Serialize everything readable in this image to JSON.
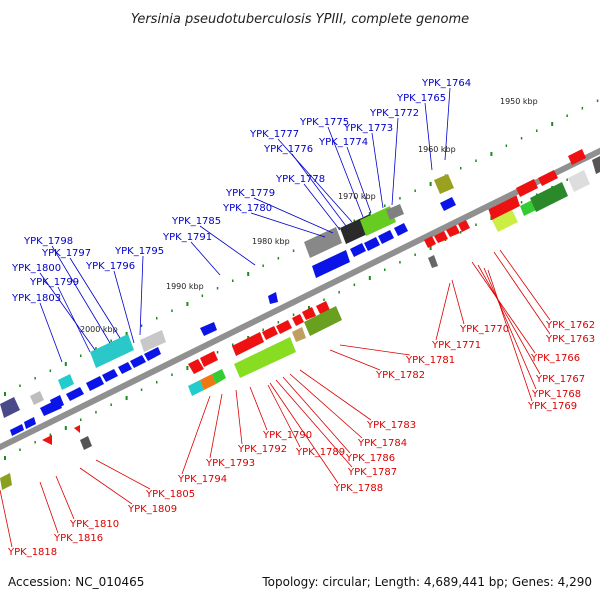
{
  "title": "Yersinia pseudotuberculosis YPIII, complete genome",
  "footer": {
    "accession": "Accession: NC_010465",
    "topology": "Topology: circular; Length: 4,689,441 bp; Genes: 4,290"
  },
  "colors": {
    "top_label": "#0000cc",
    "bottom_label": "#dd0000",
    "backbone": "#888888",
    "gene_blue": "#0a14e6",
    "gene_red": "#ee1111",
    "tick_green": "#1f8a1f"
  },
  "scale_ticks": [
    "1950 kbp",
    "1960 kbp",
    "1970 kbp",
    "1980 kbp",
    "1990 kbp",
    "2000 kbp"
  ],
  "top_genes": [
    "YPK_1764",
    "YPK_1765",
    "YPK_1772",
    "YPK_1773",
    "YPK_1774",
    "YPK_1775",
    "YPK_1777",
    "YPK_1776",
    "YPK_1778",
    "YPK_1779",
    "YPK_1780",
    "YPK_1785",
    "YPK_1791",
    "YPK_1798",
    "YPK_1797",
    "YPK_1795",
    "YPK_1796",
    "YPK_1800",
    "YPK_1799",
    "YPK_1803"
  ],
  "bottom_genes": [
    "YPK_1762",
    "YPK_1763",
    "YPK_1770",
    "YPK_1771",
    "YPK_1766",
    "YPK_1767",
    "YPK_1768",
    "YPK_1769",
    "YPK_1781",
    "YPK_1782",
    "YPK_1783",
    "YPK_1784",
    "YPK_1786",
    "YPK_1787",
    "YPK_1788",
    "YPK_1789",
    "YPK_1790",
    "YPK_1792",
    "YPK_1793",
    "YPK_1794",
    "YPK_1805",
    "YPK_1809",
    "YPK_1810",
    "YPK_1816",
    "YPK_1818"
  ]
}
